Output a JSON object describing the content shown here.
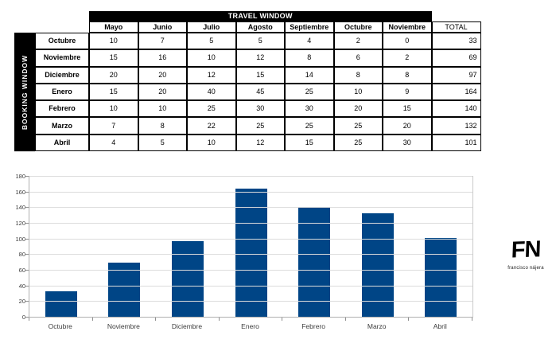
{
  "table": {
    "corner_label": "BOOKING WINDOW",
    "top_header": "TRAVEL WINDOW",
    "columns": [
      "Mayo",
      "Junio",
      "Julio",
      "Agosto",
      "Septiembre",
      "Octubre",
      "Noviembre"
    ],
    "total_label": "TOTAL",
    "rows": [
      {
        "label": "Octubre",
        "values": [
          10,
          7,
          5,
          5,
          4,
          2,
          0
        ],
        "total": 33
      },
      {
        "label": "Noviembre",
        "values": [
          15,
          16,
          10,
          12,
          8,
          6,
          2
        ],
        "total": 69
      },
      {
        "label": "Diciembre",
        "values": [
          20,
          20,
          12,
          15,
          14,
          8,
          8
        ],
        "total": 97
      },
      {
        "label": "Enero",
        "values": [
          15,
          20,
          40,
          45,
          25,
          10,
          9
        ],
        "total": 164
      },
      {
        "label": "Febrero",
        "values": [
          10,
          10,
          25,
          30,
          30,
          20,
          15
        ],
        "total": 140
      },
      {
        "label": "Marzo",
        "values": [
          7,
          8,
          22,
          25,
          25,
          25,
          20
        ],
        "total": 132
      },
      {
        "label": "Abril",
        "values": [
          4,
          5,
          10,
          12,
          15,
          25,
          30
        ],
        "total": 101
      }
    ]
  },
  "chart_data": {
    "type": "bar",
    "categories": [
      "Octubre",
      "Noviembre",
      "Diciembre",
      "Enero",
      "Febrero",
      "Marzo",
      "Abril"
    ],
    "values": [
      33,
      69,
      97,
      164,
      140,
      132,
      101
    ],
    "title": "",
    "xlabel": "",
    "ylabel": "",
    "ylim": [
      0,
      180
    ],
    "ytick_step": 20,
    "yticks": [
      0,
      20,
      40,
      60,
      80,
      100,
      120,
      140,
      160,
      180
    ],
    "grid": true,
    "legend": false,
    "bar_color": "#004586"
  },
  "logo": {
    "mark": "FN",
    "caption": "francisco nájera"
  },
  "colors": {
    "bar": "#004586",
    "header_bg": "#000000",
    "header_text": "#ffffff",
    "gridline": "#dcdcdc"
  }
}
